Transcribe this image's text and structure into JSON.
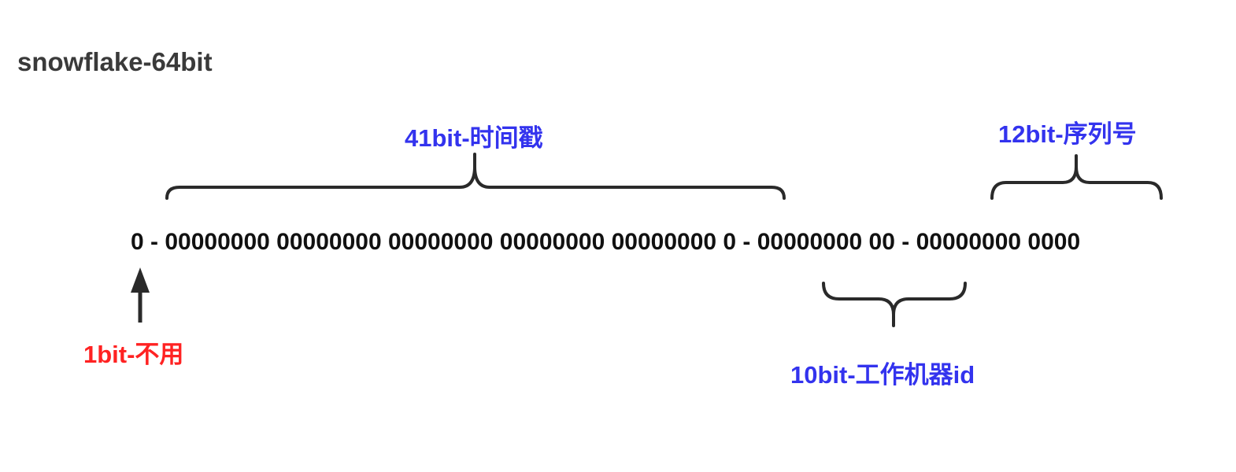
{
  "title": "snowflake-64bit",
  "bits_line": "0 - 00000000 00000000 00000000 00000000 00000000 0 - 00000000 00 - 00000000 0000",
  "segments": {
    "timestamp": {
      "label": "41bit-时间戳",
      "color": "#3333ee"
    },
    "sequence": {
      "label": "12bit-序列号",
      "color": "#3333ee"
    },
    "unused": {
      "label": "1bit-不用",
      "color": "#ff2222"
    },
    "worker": {
      "label": "10bit-工作机器id",
      "color": "#3333ee"
    }
  }
}
